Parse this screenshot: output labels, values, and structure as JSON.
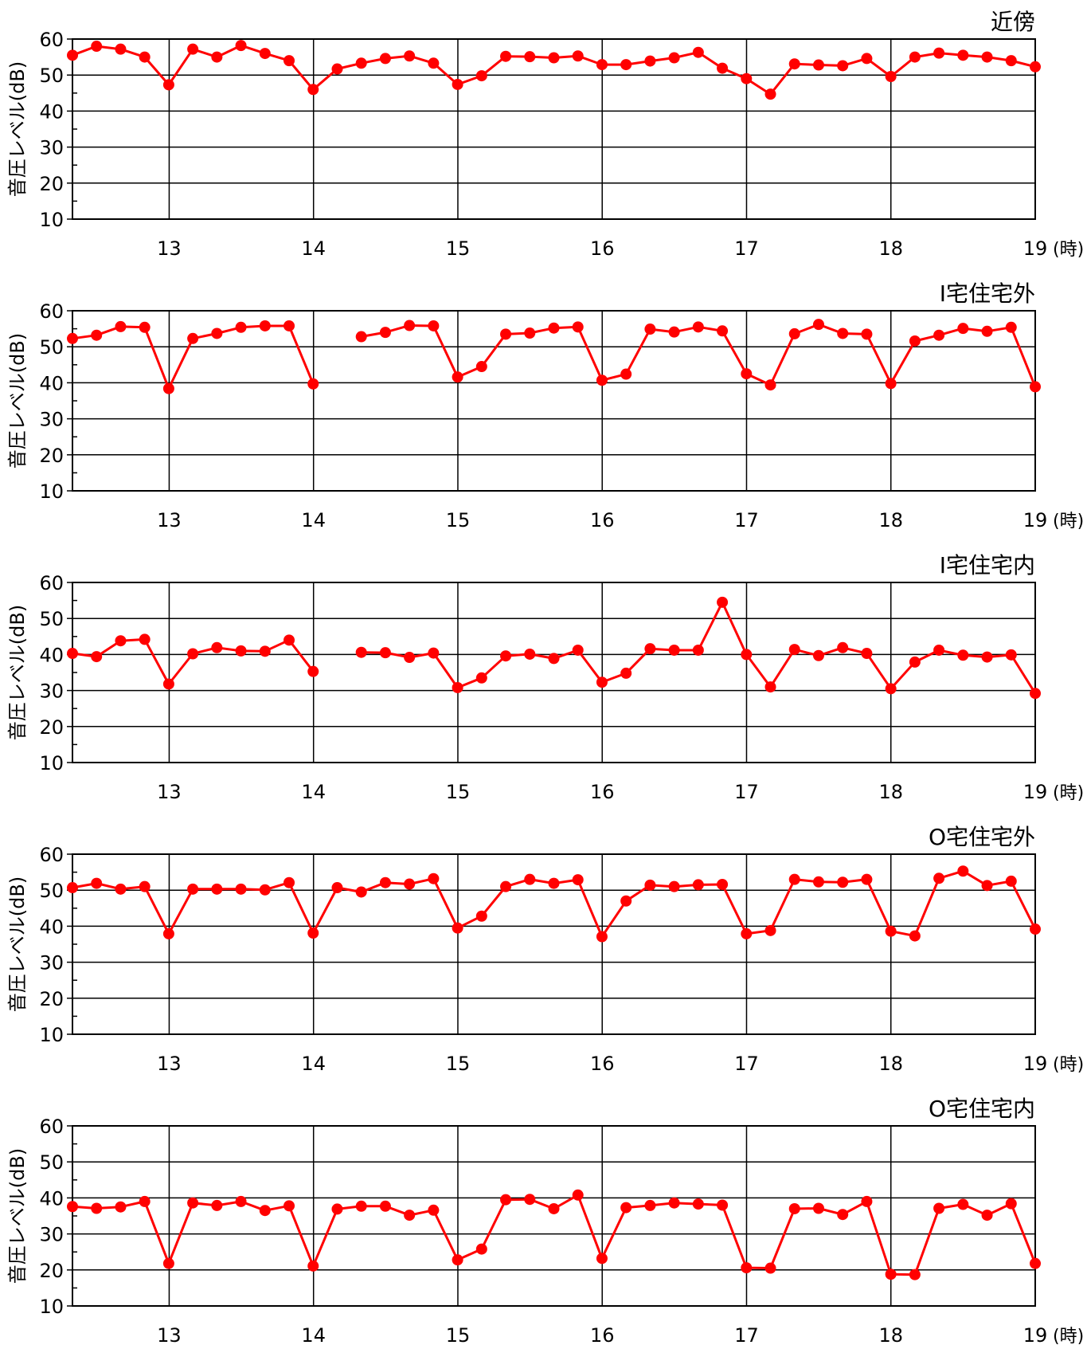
{
  "chart_data": [
    {
      "type": "line",
      "title": "近傍",
      "ylabel": "音圧レベル(dB)",
      "x_unit": "(時)",
      "xlim": [
        12.33,
        19
      ],
      "ylim": [
        10,
        60
      ],
      "yticks": [
        10,
        20,
        30,
        40,
        50,
        60
      ],
      "xticks": [
        13,
        14,
        15,
        16,
        17,
        18,
        19
      ],
      "grid": true,
      "color": "#ff0000",
      "values": [
        55.5,
        58.0,
        57.2,
        55.0,
        47.3,
        57.2,
        55.0,
        58.2,
        56.0,
        54.0,
        46.0,
        51.7,
        53.3,
        54.6,
        55.3,
        53.3,
        47.4,
        49.8,
        55.2,
        55.1,
        54.8,
        55.3,
        52.9,
        52.9,
        53.9,
        54.8,
        56.3,
        51.9,
        49.0,
        44.7,
        53.1,
        52.8,
        52.6,
        54.6,
        49.6,
        55.0,
        56.1,
        55.5,
        55.0,
        54.0,
        52.3
      ]
    },
    {
      "type": "line",
      "title": "I宅住宅外",
      "ylabel": "音圧レベル(dB)",
      "x_unit": "(時)",
      "xlim": [
        12.33,
        19
      ],
      "ylim": [
        10,
        60
      ],
      "yticks": [
        10,
        20,
        30,
        40,
        50,
        60
      ],
      "xticks": [
        13,
        14,
        15,
        16,
        17,
        18,
        19
      ],
      "grid": true,
      "color": "#ff0000",
      "values": [
        52.3,
        53.2,
        55.6,
        55.4,
        38.4,
        52.3,
        53.7,
        55.4,
        55.8,
        55.8,
        39.7,
        null,
        52.8,
        54.0,
        55.9,
        55.8,
        41.6,
        44.5,
        53.5,
        53.8,
        55.2,
        55.5,
        40.7,
        42.4,
        54.9,
        54.1,
        55.5,
        54.4,
        42.5,
        39.4,
        53.6,
        56.2,
        53.7,
        53.5,
        39.8,
        51.6,
        53.2,
        55.1,
        54.3,
        55.4,
        38.9
      ]
    },
    {
      "type": "line",
      "title": "I宅住宅内",
      "ylabel": "音圧レベル(dB)",
      "x_unit": "(時)",
      "xlim": [
        12.33,
        19
      ],
      "ylim": [
        10,
        60
      ],
      "yticks": [
        10,
        20,
        30,
        40,
        50,
        60
      ],
      "xticks": [
        13,
        14,
        15,
        16,
        17,
        18,
        19
      ],
      "grid": true,
      "color": "#ff0000",
      "values": [
        40.3,
        39.4,
        43.8,
        44.2,
        31.8,
        40.2,
        41.9,
        41.0,
        40.9,
        44.0,
        35.3,
        null,
        40.6,
        40.5,
        39.2,
        40.4,
        30.8,
        33.5,
        39.6,
        40.1,
        38.9,
        41.2,
        32.3,
        34.8,
        41.6,
        41.2,
        41.2,
        54.5,
        40.0,
        31.0,
        41.4,
        39.7,
        41.9,
        40.3,
        30.5,
        37.9,
        41.2,
        39.8,
        39.3,
        39.9,
        29.2
      ]
    },
    {
      "type": "line",
      "title": "O宅住宅外",
      "ylabel": "音圧レベル(dB)",
      "x_unit": "(時)",
      "xlim": [
        12.33,
        19
      ],
      "ylim": [
        10,
        60
      ],
      "yticks": [
        10,
        20,
        30,
        40,
        50,
        60
      ],
      "xticks": [
        13,
        14,
        15,
        16,
        17,
        18,
        19
      ],
      "grid": true,
      "color": "#ff0000",
      "values": [
        50.7,
        51.9,
        50.3,
        51.0,
        37.9,
        50.3,
        50.3,
        50.3,
        50.1,
        52.1,
        38.1,
        50.7,
        49.5,
        52.1,
        51.7,
        53.2,
        39.5,
        42.8,
        51.0,
        53.0,
        51.9,
        52.9,
        37.1,
        47.0,
        51.4,
        51.0,
        51.5,
        51.6,
        37.9,
        38.8,
        53.0,
        52.3,
        52.2,
        53.0,
        38.6,
        37.3,
        53.3,
        55.3,
        51.3,
        52.5,
        39.2
      ]
    },
    {
      "type": "line",
      "title": "O宅住宅内",
      "ylabel": "音圧レベル(dB)",
      "x_unit": "(時)",
      "xlim": [
        12.33,
        19
      ],
      "ylim": [
        10,
        60
      ],
      "yticks": [
        10,
        20,
        30,
        40,
        50,
        60
      ],
      "xticks": [
        13,
        14,
        15,
        16,
        17,
        18,
        19
      ],
      "grid": true,
      "color": "#ff0000",
      "values": [
        37.6,
        37.1,
        37.5,
        39.0,
        21.8,
        38.6,
        37.9,
        39.0,
        36.5,
        37.8,
        21.1,
        36.9,
        37.7,
        37.7,
        35.2,
        36.6,
        22.8,
        25.8,
        39.5,
        39.6,
        37.0,
        40.8,
        23.2,
        37.3,
        37.9,
        38.6,
        38.3,
        38.0,
        20.6,
        20.5,
        37.0,
        37.1,
        35.4,
        39.0,
        18.8,
        18.7,
        37.1,
        38.2,
        35.2,
        38.4,
        21.8
      ]
    }
  ]
}
